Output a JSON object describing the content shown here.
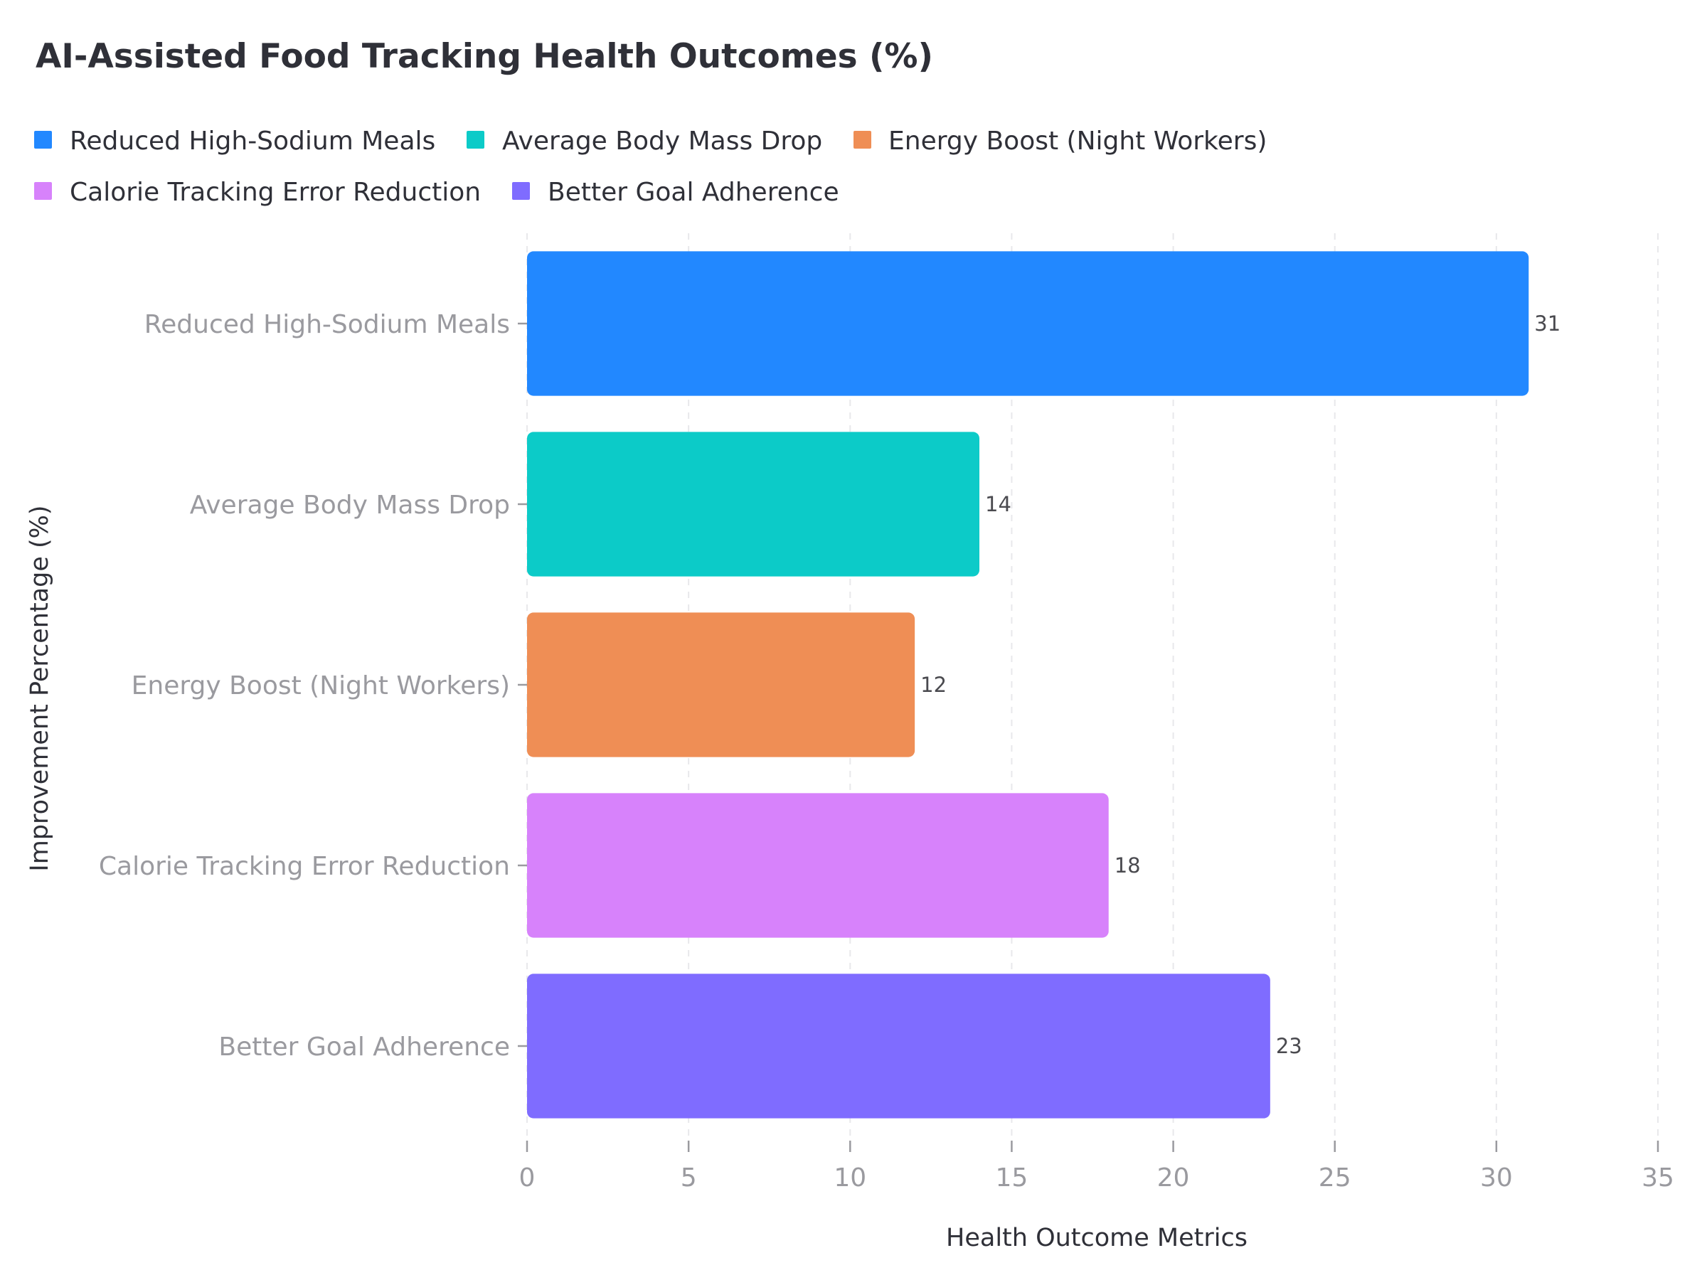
{
  "chart_data": {
    "type": "bar",
    "orientation": "horizontal",
    "title": "AI-Assisted Food Tracking Health Outcomes (%)",
    "xlabel": "Health Outcome Metrics",
    "ylabel": "Improvement Percentage (%)",
    "categories": [
      "Reduced High-Sodium Meals",
      "Average Body Mass Drop",
      "Energy Boost (Night Workers)",
      "Calorie Tracking Error Reduction",
      "Better Goal Adherence"
    ],
    "values": [
      31,
      14,
      12,
      18,
      23
    ],
    "value_labels": [
      "31",
      "14",
      "12",
      "18",
      "23"
    ],
    "colors": [
      "#2288ff",
      "#0ccbc8",
      "#ef8e55",
      "#d782fb",
      "#7f6cff"
    ],
    "xlim": [
      0,
      35
    ],
    "xticks": [
      0,
      5,
      10,
      15,
      20,
      25,
      30,
      35
    ],
    "xtick_labels": [
      "0",
      "5",
      "10",
      "15",
      "20",
      "25",
      "30",
      "35"
    ],
    "legend": {
      "placement": "top-left",
      "entries": [
        "Reduced High-Sodium Meals",
        "Average Body Mass Drop",
        "Energy Boost (Night Workers)",
        "Calorie Tracking Error Reduction",
        "Better Goal Adherence"
      ]
    },
    "grid": "vertical-dashed"
  }
}
